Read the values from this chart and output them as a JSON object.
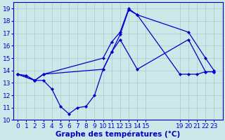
{
  "background_color": "#cce8e8",
  "grid_color": "#aacccc",
  "line_color": "#0000cc",
  "xlabel": "Graphe des températures (°C)",
  "xlabel_fontsize": 7.5,
  "ylim": [
    10,
    19.5
  ],
  "ytick_min": 10,
  "ytick_max": 19,
  "tick_fontsize": 6.5,
  "xtick_labels": [
    "0",
    "1",
    "2",
    "3",
    "4",
    "5",
    "6",
    "7",
    "8",
    "9",
    "10",
    "11",
    "12",
    "13",
    "14",
    "15",
    "19",
    "20",
    "21",
    "22",
    "23"
  ],
  "xtick_pos": [
    0,
    1,
    2,
    3,
    4,
    5,
    6,
    7,
    8,
    9,
    10,
    11,
    12,
    13,
    14,
    15,
    19,
    20,
    21,
    22,
    23
  ],
  "xlim": [
    -0.5,
    24.0
  ],
  "series1_x": [
    0,
    1,
    2,
    3,
    4,
    5,
    6,
    7,
    8,
    9,
    10,
    11,
    12,
    13,
    14,
    19,
    20,
    21,
    22,
    23
  ],
  "series1_y": [
    13.7,
    13.6,
    13.2,
    13.2,
    12.5,
    11.1,
    10.5,
    11.0,
    11.1,
    12.0,
    14.1,
    15.5,
    16.9,
    18.9,
    18.5,
    13.7,
    13.7,
    13.7,
    13.9,
    13.9
  ],
  "series2_x": [
    0,
    2,
    3,
    10,
    11,
    12,
    13,
    14,
    20,
    22,
    23
  ],
  "series2_y": [
    13.7,
    13.2,
    13.7,
    15.0,
    16.3,
    17.1,
    19.0,
    18.5,
    17.1,
    15.0,
    14.0
  ],
  "series3_x": [
    0,
    2,
    3,
    10,
    11,
    12,
    14,
    20,
    22,
    23
  ],
  "series3_y": [
    13.7,
    13.2,
    13.7,
    14.1,
    15.5,
    16.5,
    14.1,
    16.5,
    13.9,
    13.9
  ]
}
